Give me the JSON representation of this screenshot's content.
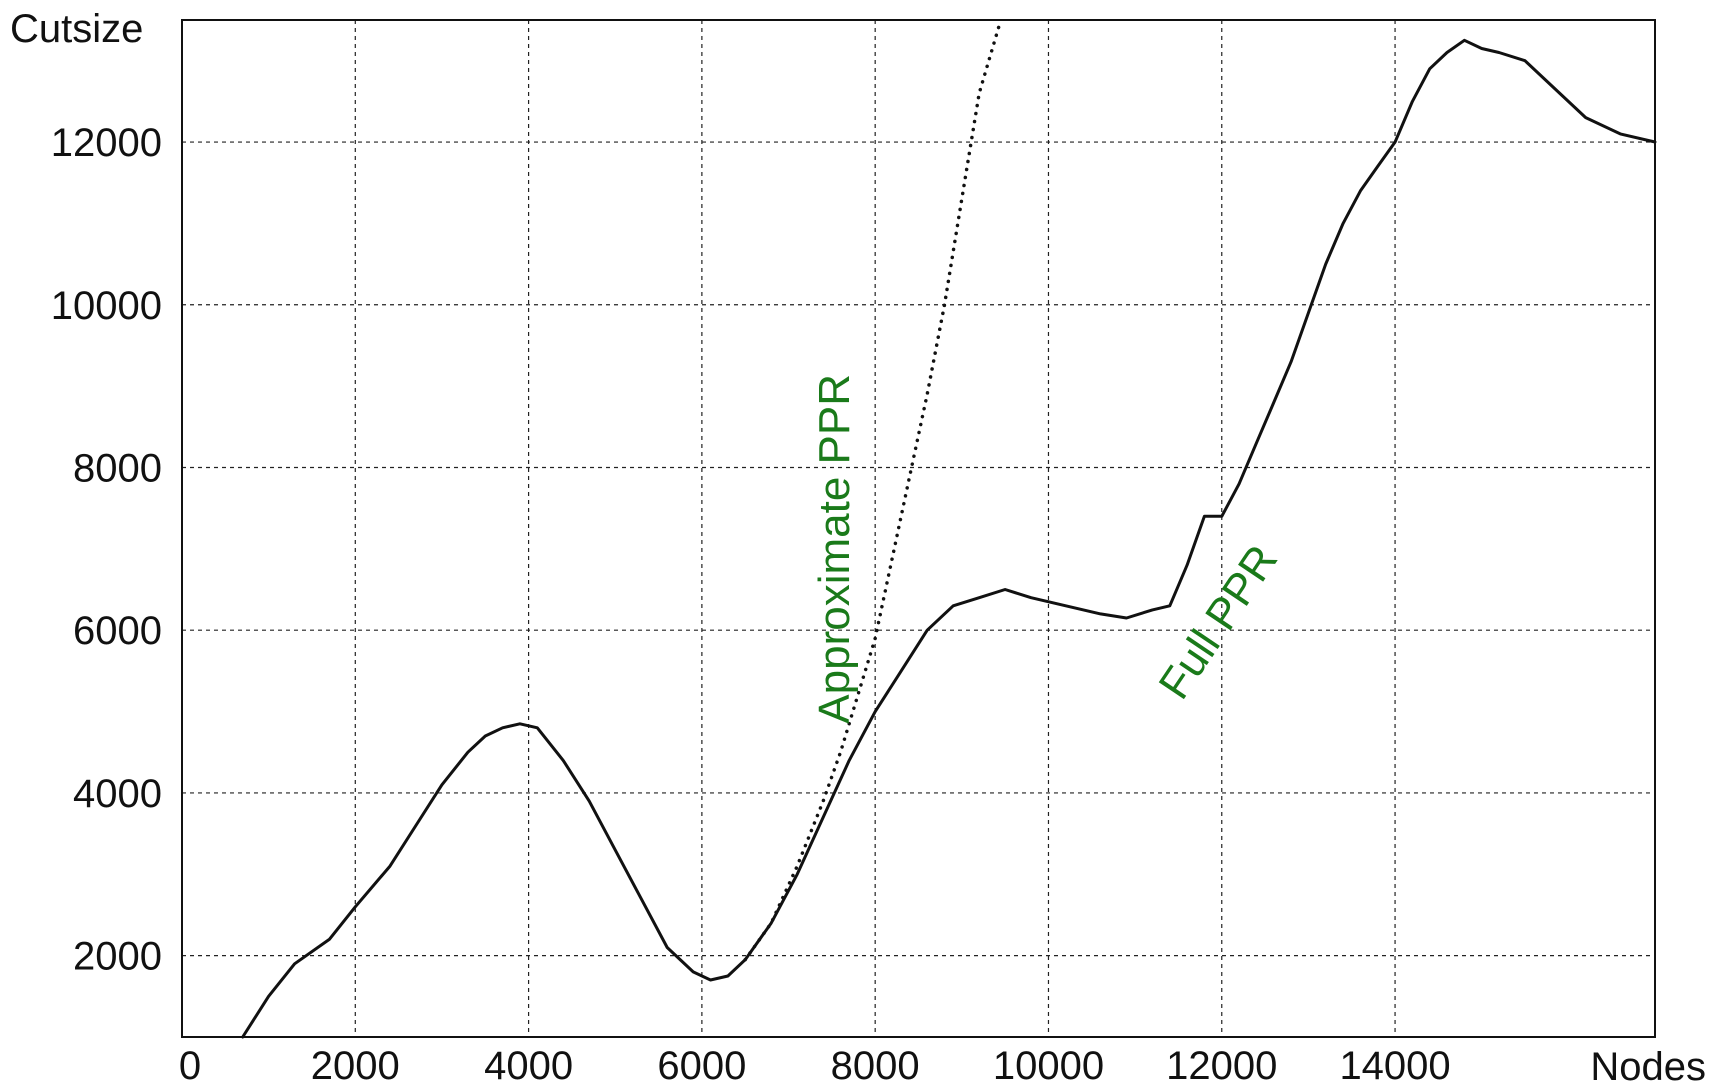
{
  "chart_data": {
    "type": "line",
    "title": "",
    "xlabel": "Nodes",
    "ylabel": "Cutsize",
    "xlim": [
      0,
      17000
    ],
    "ylim": [
      1000,
      13500
    ],
    "x_ticks": [
      0,
      2000,
      4000,
      6000,
      8000,
      10000,
      12000,
      14000
    ],
    "y_ticks": [
      2000,
      4000,
      6000,
      8000,
      10000,
      12000
    ],
    "grid": true,
    "legend": "none",
    "annotations": [
      {
        "text": "Approximate PPR",
        "x": 7700,
        "y": 7000,
        "rotation": -90,
        "color": "#1a7a1a"
      },
      {
        "text": "Full PPR",
        "x": 12100,
        "y": 6000,
        "rotation": -56,
        "color": "#1a7a1a"
      }
    ],
    "series": [
      {
        "name": "Full PPR",
        "style": "solid",
        "color": "#111111",
        "x": [
          700,
          1000,
          1300,
          1700,
          2000,
          2400,
          2700,
          3000,
          3300,
          3500,
          3700,
          3900,
          4100,
          4400,
          4700,
          5000,
          5300,
          5600,
          5900,
          6100,
          6300,
          6500,
          6800,
          7100,
          7400,
          7700,
          8000,
          8300,
          8600,
          8900,
          9200,
          9500,
          9800,
          10200,
          10600,
          10900,
          11200,
          11400,
          11600,
          11800,
          12000,
          12200,
          12400,
          12600,
          12800,
          13000,
          13200,
          13400,
          13600,
          13800,
          14000,
          14200,
          14400,
          14600,
          14800,
          15000,
          15200,
          15500,
          15800,
          16200,
          16600,
          17000
        ],
        "y": [
          1000,
          1500,
          1900,
          2200,
          2600,
          3100,
          3600,
          4100,
          4500,
          4700,
          4800,
          4850,
          4800,
          4400,
          3900,
          3300,
          2700,
          2100,
          1800,
          1700,
          1750,
          1950,
          2400,
          3000,
          3700,
          4400,
          5000,
          5500,
          6000,
          6300,
          6400,
          6500,
          6400,
          6300,
          6200,
          6150,
          6250,
          6300,
          6800,
          7400,
          7400,
          7800,
          8300,
          8800,
          9300,
          9900,
          10500,
          11000,
          11400,
          11700,
          12000,
          12500,
          12900,
          13100,
          13250,
          13150,
          13100,
          13000,
          12700,
          12300,
          12100,
          12000
        ]
      },
      {
        "name": "Approximate PPR",
        "style": "dotted",
        "color": "#111111",
        "x": [
          6500,
          6800,
          7100,
          7400,
          7600,
          7800,
          8000,
          8200,
          8400,
          8600,
          8800,
          9000,
          9200,
          9450
        ],
        "y": [
          1950,
          2400,
          3100,
          3900,
          4500,
          5200,
          5900,
          6900,
          7900,
          8900,
          10000,
          11300,
          12600,
          13500
        ]
      }
    ]
  }
}
